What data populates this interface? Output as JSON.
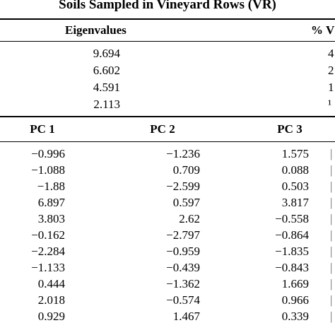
{
  "title": "Soils Sampled in Vineyard Rows (VR)",
  "eigen_section": {
    "col1_header": "Eigenvalues",
    "col2_header": "% V",
    "rows": [
      {
        "eigenvalue": "9.694",
        "variance": "4"
      },
      {
        "eigenvalue": "6.602",
        "variance": "2"
      },
      {
        "eigenvalue": "4.591",
        "variance": "1"
      },
      {
        "eigenvalue": "2.113",
        "variance": "¹"
      }
    ]
  },
  "scores_section": {
    "headers": [
      "PC 1",
      "PC 2",
      "PC 3"
    ],
    "rows": [
      [
        "−0.996",
        "−1.236",
        "1.575"
      ],
      [
        "−1.088",
        "0.709",
        "0.088"
      ],
      [
        "−1.88",
        "−2.599",
        "0.503"
      ],
      [
        "6.897",
        "0.597",
        "3.817"
      ],
      [
        "3.803",
        "2.62",
        "−0.558"
      ],
      [
        "−0.162",
        "−2.797",
        "−0.864"
      ],
      [
        "−2.284",
        "−0.959",
        "−1.835"
      ],
      [
        "−1.133",
        "−0.439",
        "−0.843"
      ],
      [
        "0.444",
        "−1.362",
        "1.669"
      ],
      [
        "2.018",
        "−0.574",
        "0.966"
      ],
      [
        "0.929",
        "1.467",
        "0.339"
      ]
    ],
    "edge_marks": [
      "|",
      "|",
      "|",
      "|",
      "|",
      "|",
      "|",
      "|",
      "|",
      "|",
      "|"
    ]
  }
}
